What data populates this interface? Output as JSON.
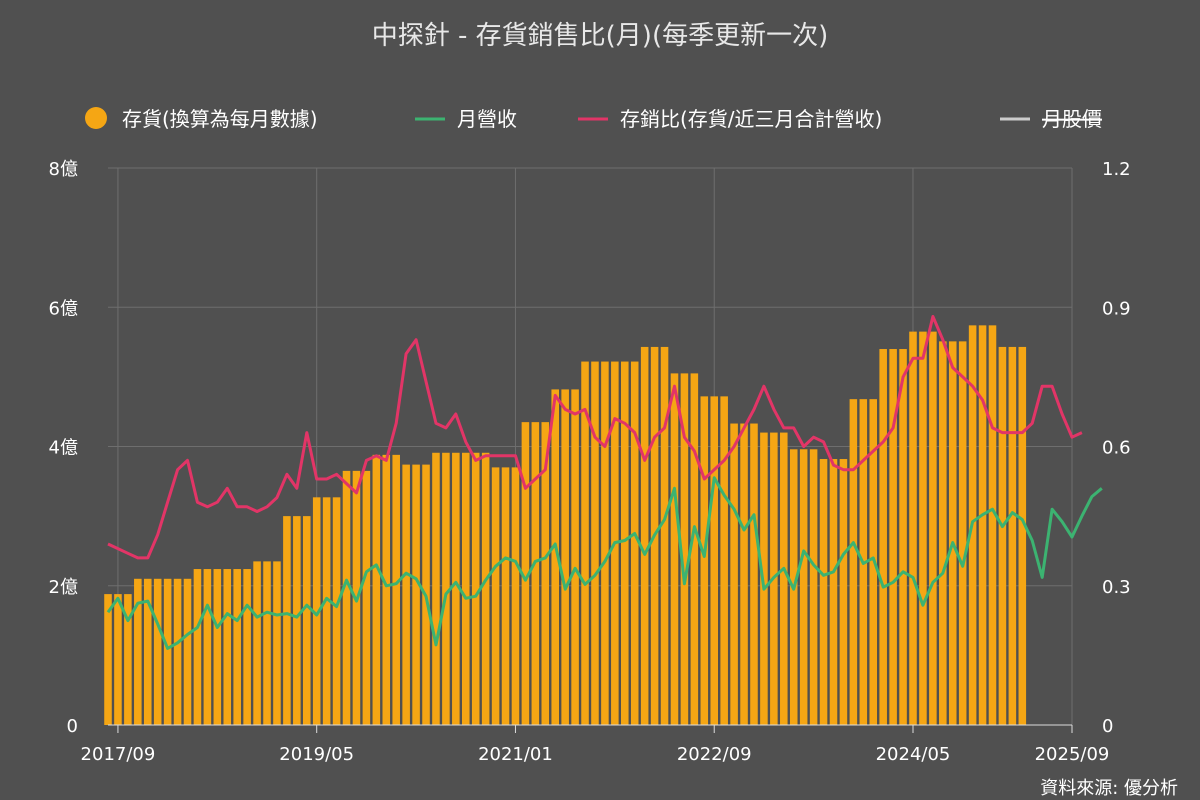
{
  "title": "中探針 - 存貨銷售比(月)(每季更新一次)",
  "source": "資料來源: 優分析",
  "colors": {
    "background": "#505050",
    "grid": "#6e6e6e",
    "inventory": "#f5a614",
    "revenue": "#3cb371",
    "ratio": "#e23567",
    "price": "#cccccc"
  },
  "legend": [
    {
      "label": "存貨(換算為每月數據)",
      "marker": "dot",
      "color": "#f5a614"
    },
    {
      "label": "月營收",
      "marker": "line",
      "color": "#3cb371"
    },
    {
      "label": "存銷比(存貨/近三月合計營收)",
      "marker": "line",
      "color": "#e23567"
    },
    {
      "label": "月股價",
      "marker": "line",
      "color": "#cccccc",
      "hidden": true
    }
  ],
  "chart_data": {
    "type": "bar+line",
    "x_start": "2017/08",
    "x_end": "2025/09",
    "x_ticks": [
      "2017/09",
      "2019/05",
      "2021/01",
      "2022/09",
      "2024/05",
      "2025/09"
    ],
    "y_left": {
      "min": 0,
      "max": 8,
      "ticks": [
        "0",
        "2億",
        "4億",
        "6億",
        "8億"
      ]
    },
    "y_right": {
      "min": 0,
      "max": 1.2,
      "ticks": [
        "0",
        "0.3",
        "0.6",
        "0.9",
        "1.2"
      ]
    },
    "grid": true,
    "legend_position": "top",
    "series": [
      {
        "name": "存貨(換算為每月數據)",
        "type": "bar",
        "axis": "left",
        "unit": "億",
        "quarters": [
          {
            "start": "2017/08",
            "value": 1.88
          },
          {
            "start": "2017/11",
            "value": 2.1
          },
          {
            "start": "2018/02",
            "value": 2.1
          },
          {
            "start": "2018/05",
            "value": 2.24
          },
          {
            "start": "2018/08",
            "value": 2.24
          },
          {
            "start": "2018/11",
            "value": 2.35
          },
          {
            "start": "2019/02",
            "value": 3.0
          },
          {
            "start": "2019/05",
            "value": 3.27
          },
          {
            "start": "2019/08",
            "value": 3.65
          },
          {
            "start": "2019/11",
            "value": 3.88
          },
          {
            "start": "2020/02",
            "value": 3.74
          },
          {
            "start": "2020/05",
            "value": 3.91
          },
          {
            "start": "2020/08",
            "value": 3.91
          },
          {
            "start": "2020/11",
            "value": 3.7
          },
          {
            "start": "2021/02",
            "value": 4.35
          },
          {
            "start": "2021/05",
            "value": 4.82
          },
          {
            "start": "2021/08",
            "value": 5.22
          },
          {
            "start": "2021/11",
            "value": 5.22
          },
          {
            "start": "2022/02",
            "value": 5.43
          },
          {
            "start": "2022/05",
            "value": 5.05
          },
          {
            "start": "2022/08",
            "value": 4.72
          },
          {
            "start": "2022/11",
            "value": 4.33
          },
          {
            "start": "2023/02",
            "value": 4.2
          },
          {
            "start": "2023/05",
            "value": 3.96
          },
          {
            "start": "2023/08",
            "value": 3.82
          },
          {
            "start": "2023/11",
            "value": 4.68
          },
          {
            "start": "2024/02",
            "value": 5.4
          },
          {
            "start": "2024/05",
            "value": 5.65
          },
          {
            "start": "2024/08",
            "value": 5.51
          },
          {
            "start": "2024/11",
            "value": 5.74
          },
          {
            "start": "2025/02",
            "value": 5.43
          }
        ]
      },
      {
        "name": "月營收",
        "type": "line",
        "axis": "left",
        "unit": "億",
        "start": "2017/08",
        "values": [
          1.62,
          1.82,
          1.5,
          1.75,
          1.78,
          1.45,
          1.1,
          1.18,
          1.3,
          1.4,
          1.72,
          1.4,
          1.6,
          1.5,
          1.72,
          1.55,
          1.62,
          1.58,
          1.6,
          1.55,
          1.72,
          1.58,
          1.82,
          1.7,
          2.08,
          1.78,
          2.2,
          2.3,
          2.0,
          2.03,
          2.18,
          2.1,
          1.85,
          1.15,
          1.88,
          2.05,
          1.82,
          1.85,
          2.08,
          2.28,
          2.4,
          2.35,
          2.08,
          2.35,
          2.4,
          2.6,
          1.95,
          2.25,
          2.02,
          2.15,
          2.35,
          2.62,
          2.65,
          2.75,
          2.45,
          2.73,
          2.95,
          3.4,
          2.03,
          2.85,
          2.42,
          3.55,
          3.3,
          3.1,
          2.8,
          3.02,
          1.95,
          2.12,
          2.25,
          1.95,
          2.5,
          2.3,
          2.15,
          2.2,
          2.45,
          2.62,
          2.32,
          2.4,
          1.98,
          2.05,
          2.2,
          2.12,
          1.72,
          2.05,
          2.18,
          2.62,
          2.28,
          2.92,
          3.02,
          3.1,
          2.85,
          3.05,
          2.95,
          2.65,
          2.12,
          3.1,
          2.92,
          2.7,
          3.0,
          3.28,
          3.4
        ]
      },
      {
        "name": "存銷比(存貨/近三月合計營收)",
        "type": "line",
        "axis": "right",
        "start": "2017/08",
        "values": [
          0.39,
          0.38,
          0.37,
          0.36,
          0.36,
          0.41,
          0.48,
          0.55,
          0.57,
          0.48,
          0.47,
          0.48,
          0.51,
          0.47,
          0.47,
          0.46,
          0.47,
          0.49,
          0.54,
          0.51,
          0.63,
          0.53,
          0.53,
          0.54,
          0.52,
          0.5,
          0.57,
          0.58,
          0.57,
          0.65,
          0.8,
          0.83,
          0.74,
          0.65,
          0.64,
          0.67,
          0.61,
          0.57,
          0.58,
          0.58,
          0.58,
          0.58,
          0.51,
          0.53,
          0.55,
          0.71,
          0.68,
          0.67,
          0.68,
          0.62,
          0.6,
          0.66,
          0.65,
          0.63,
          0.57,
          0.62,
          0.64,
          0.73,
          0.62,
          0.59,
          0.53,
          0.55,
          0.57,
          0.6,
          0.64,
          0.68,
          0.73,
          0.68,
          0.64,
          0.64,
          0.6,
          0.62,
          0.61,
          0.56,
          0.55,
          0.55,
          0.57,
          0.59,
          0.61,
          0.64,
          0.75,
          0.79,
          0.79,
          0.88,
          0.83,
          0.77,
          0.75,
          0.73,
          0.7,
          0.64,
          0.63,
          0.63,
          0.63,
          0.65,
          0.73,
          0.73,
          0.67,
          0.62,
          0.63
        ]
      },
      {
        "name": "月股價",
        "type": "line",
        "hidden": true,
        "values": []
      }
    ]
  }
}
